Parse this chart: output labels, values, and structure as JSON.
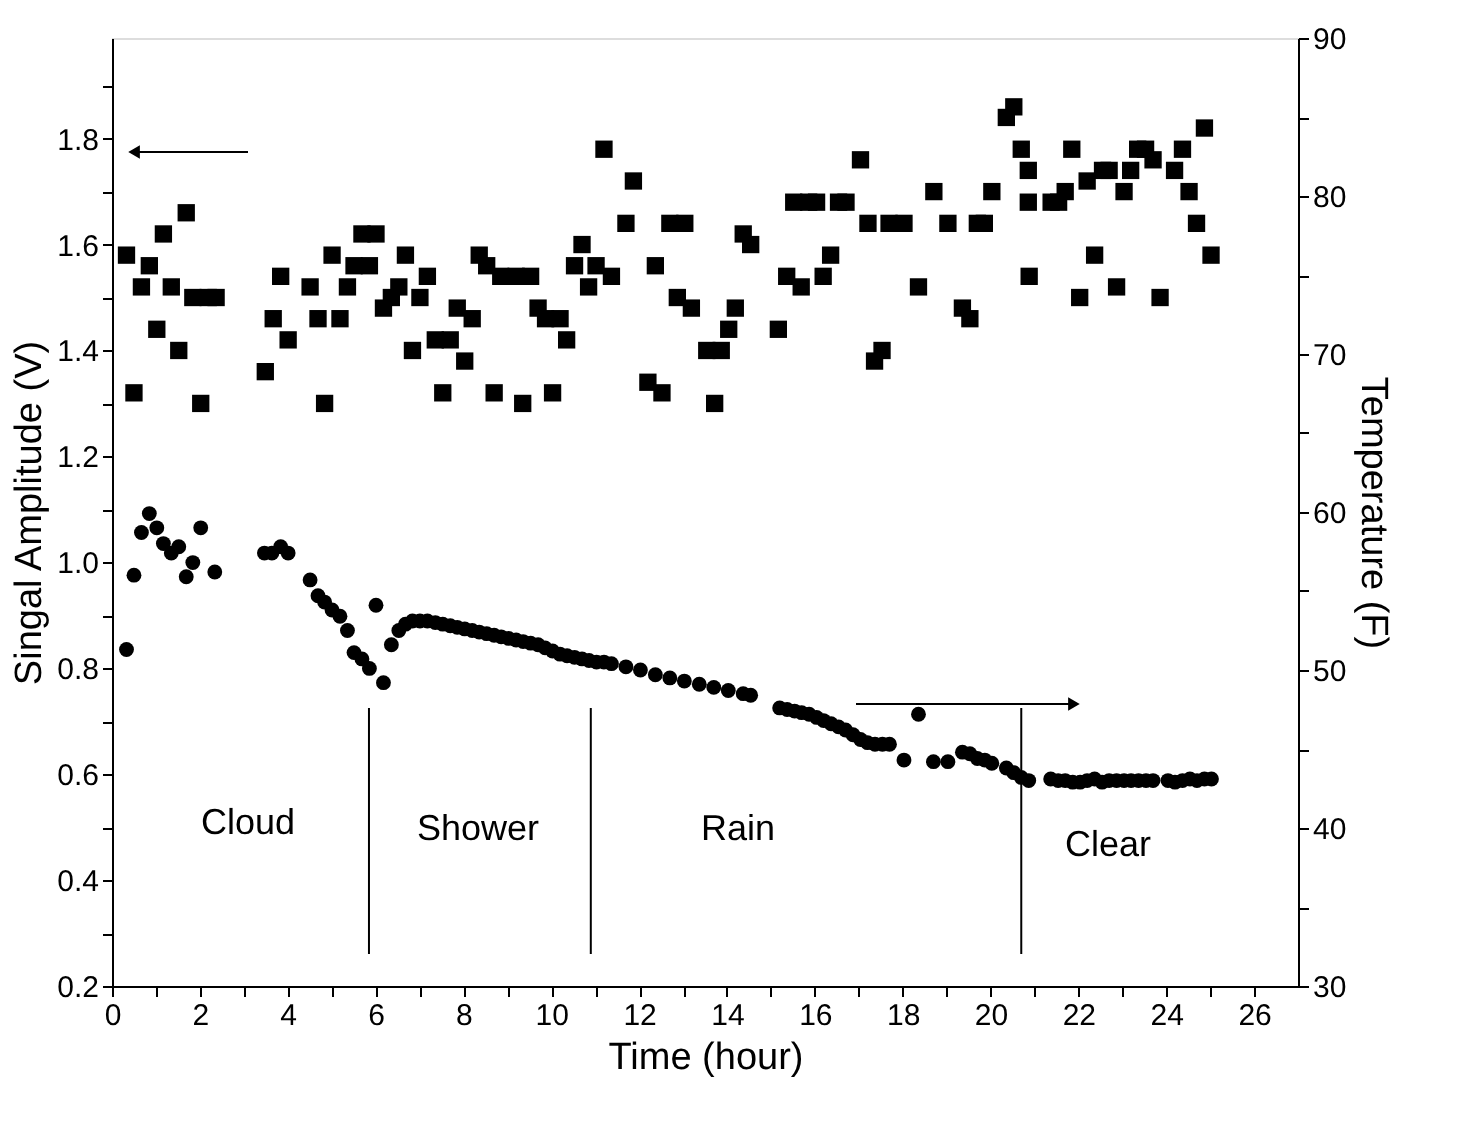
{
  "chart_data": {
    "type": "scatter",
    "xlabel": "Time (hour)",
    "ylabel": "Singal Amplitude (V)",
    "y2label": "Temperature (F)",
    "xlim": [
      0,
      27
    ],
    "xticks": [
      0,
      {
        "value": 1,
        "label": null
      },
      2,
      {
        "value": 3,
        "label": null
      },
      4,
      {
        "value": 5,
        "label": null
      },
      6,
      {
        "value": 7,
        "label": null
      },
      8,
      {
        "value": 9,
        "label": null
      },
      10,
      {
        "value": 11,
        "label": null
      },
      12,
      {
        "value": 13,
        "label": null
      },
      14,
      {
        "value": 15,
        "label": null
      },
      16,
      {
        "value": 17,
        "label": null
      },
      18,
      {
        "value": 19,
        "label": null
      },
      20,
      {
        "value": 21,
        "label": null
      },
      22,
      {
        "value": 23,
        "label": null
      },
      24,
      {
        "value": 25,
        "label": null
      },
      26
    ],
    "ylim": [
      0.2,
      1.99
    ],
    "yticks": [
      0.2,
      {
        "value": 0.3,
        "label": null
      },
      0.4,
      {
        "value": 0.5,
        "label": null
      },
      0.6,
      {
        "value": 0.7,
        "label": null
      },
      0.8,
      {
        "value": 0.9,
        "label": null
      },
      {
        "value": 1.0,
        "label": "1.0"
      },
      {
        "value": 1.1,
        "label": null
      },
      1.2,
      {
        "value": 1.3,
        "label": null
      },
      1.4,
      {
        "value": 1.5,
        "label": null
      },
      1.6,
      {
        "value": 1.7,
        "label": null
      },
      1.8,
      {
        "value": 1.9,
        "label": null
      }
    ],
    "y2lim": [
      30,
      90
    ],
    "y2ticks": [
      30,
      {
        "value": 35,
        "label": null
      },
      40,
      {
        "value": 45,
        "label": null
      },
      50,
      {
        "value": 55,
        "label": null
      },
      60,
      {
        "value": 65,
        "label": null
      },
      70,
      {
        "value": 75,
        "label": null
      },
      80,
      {
        "value": 85,
        "label": null
      },
      90
    ],
    "grid": false,
    "series": [
      {
        "marker": "square",
        "color": "#000000",
        "x": [
          0.33,
          0.5,
          0.67,
          0.85,
          1.02,
          1.17,
          1.35,
          1.52,
          1.69,
          1.84,
          2.02,
          2.19,
          2.37,
          3.49,
          3.67,
          3.84,
          4.01,
          4.51,
          4.69,
          4.84,
          5.01,
          5.19,
          5.36,
          5.51,
          5.69,
          5.86,
          6.01,
          6.18,
          6.36,
          6.53,
          6.68,
          6.84,
          7.01,
          7.18,
          7.36,
          7.53,
          7.7,
          7.86,
          8.03,
          8.2,
          8.36,
          8.53,
          8.7,
          8.85,
          9.2,
          9.35,
          9.53,
          9.7,
          9.87,
          10.03,
          10.2,
          10.35,
          10.53,
          10.7,
          10.85,
          11.02,
          11.2,
          11.37,
          11.7,
          11.87,
          12.2,
          12.37,
          12.52,
          12.7,
          12.87,
          13.04,
          13.19,
          13.54,
          13.72,
          13.87,
          14.04,
          14.19,
          14.37,
          14.54,
          15.17,
          15.36,
          15.52,
          15.69,
          15.86,
          16.04,
          16.19,
          16.36,
          16.54,
          16.71,
          17.04,
          17.21,
          17.36,
          17.53,
          17.69,
          18.03,
          18.36,
          18.71,
          19.03,
          19.36,
          19.53,
          19.7,
          19.86,
          20.03,
          20.36,
          20.53,
          20.7,
          20.86,
          20.86,
          20.88,
          21.38,
          21.55,
          21.7,
          21.85,
          22.03,
          22.2,
          22.37,
          22.55,
          22.7,
          22.87,
          23.04,
          23.19,
          23.35,
          23.53,
          23.7,
          23.86,
          24.19,
          24.37,
          24.52,
          24.69,
          24.87,
          25.02
        ],
        "values": [
          1.58,
          1.32,
          1.52,
          1.56,
          1.44,
          1.62,
          1.52,
          1.4,
          1.66,
          1.5,
          1.3,
          1.5,
          1.5,
          1.36,
          1.46,
          1.54,
          1.42,
          1.52,
          1.46,
          1.3,
          1.58,
          1.46,
          1.52,
          1.56,
          1.62,
          1.56,
          1.62,
          1.48,
          1.5,
          1.52,
          1.58,
          1.4,
          1.5,
          1.54,
          1.42,
          1.32,
          1.42,
          1.48,
          1.38,
          1.46,
          1.58,
          1.56,
          1.32,
          1.54,
          1.54,
          1.3,
          1.54,
          1.48,
          1.46,
          1.32,
          1.46,
          1.42,
          1.56,
          1.6,
          1.52,
          1.56,
          1.78,
          1.54,
          1.64,
          1.72,
          1.34,
          1.56,
          1.32,
          1.64,
          1.5,
          1.64,
          1.48,
          1.4,
          1.3,
          1.4,
          1.44,
          1.48,
          1.62,
          1.6,
          1.44,
          1.54,
          1.68,
          1.52,
          1.68,
          1.68,
          1.54,
          1.58,
          1.68,
          1.68,
          1.76,
          1.64,
          1.38,
          1.4,
          1.64,
          1.64,
          1.52,
          1.7,
          1.64,
          1.48,
          1.46,
          1.64,
          1.64,
          1.7,
          1.84,
          1.86,
          1.78,
          1.74,
          1.68,
          1.54,
          1.68,
          1.68,
          1.7,
          1.78,
          1.5,
          1.72,
          1.58,
          1.74,
          1.74,
          1.52,
          1.7,
          1.74,
          1.78,
          1.78,
          1.76,
          1.5,
          1.74,
          1.78,
          1.7,
          1.64,
          1.82,
          1.58
        ]
      },
      {
        "marker": "circle",
        "color": "#000000",
        "axis": "y2",
        "x": [
          0.33,
          0.5,
          0.67,
          0.85,
          1.02,
          1.17,
          1.35,
          1.52,
          1.69,
          1.84,
          2.02,
          2.34,
          3.47,
          3.64,
          3.84,
          4.01,
          4.51,
          4.69,
          4.84,
          5.01,
          5.19,
          5.36,
          5.51,
          5.69,
          5.86,
          6.01,
          6.18,
          6.36,
          6.53,
          6.68,
          6.84,
          7.01,
          7.18,
          7.36,
          7.53,
          7.7,
          7.86,
          8.03,
          8.2,
          8.36,
          8.53,
          8.7,
          8.86,
          9.03,
          9.2,
          9.36,
          9.53,
          9.7,
          9.86,
          10.03,
          10.2,
          10.36,
          10.53,
          10.7,
          10.86,
          11.03,
          11.2,
          11.37,
          11.7,
          12.03,
          12.37,
          12.7,
          13.03,
          13.37,
          13.7,
          14.03,
          14.37,
          14.54,
          15.2,
          15.37,
          15.54,
          15.7,
          15.87,
          16.04,
          16.2,
          16.37,
          16.54,
          16.7,
          16.87,
          17.04,
          17.2,
          17.37,
          17.54,
          17.7,
          18.03,
          18.36,
          18.7,
          19.03,
          19.36,
          19.53,
          19.7,
          19.87,
          20.03,
          20.36,
          20.53,
          20.7,
          20.87,
          21.37,
          21.54,
          21.7,
          21.87,
          22.04,
          22.2,
          22.37,
          22.54,
          22.7,
          22.87,
          23.04,
          23.2,
          23.37,
          23.54,
          23.7,
          24.04,
          24.2,
          24.37,
          24.54,
          24.7,
          24.87,
          25.03
        ],
        "values": [
          51.3,
          56.0,
          58.7,
          59.9,
          59.0,
          58.0,
          57.4,
          57.8,
          55.9,
          56.8,
          59.0,
          56.2,
          57.4,
          57.4,
          57.8,
          57.4,
          55.7,
          54.7,
          54.3,
          53.8,
          53.4,
          52.5,
          51.1,
          50.7,
          50.1,
          54.1,
          49.2,
          51.6,
          52.5,
          52.9,
          53.1,
          53.1,
          53.1,
          53.0,
          52.9,
          52.8,
          52.7,
          52.6,
          52.5,
          52.4,
          52.3,
          52.2,
          52.1,
          52.0,
          51.9,
          51.8,
          51.7,
          51.6,
          51.4,
          51.2,
          51.0,
          50.9,
          50.8,
          50.7,
          50.6,
          50.5,
          50.5,
          50.4,
          50.2,
          50.0,
          49.7,
          49.5,
          49.3,
          49.1,
          48.9,
          48.7,
          48.5,
          48.4,
          47.6,
          47.5,
          47.4,
          47.3,
          47.2,
          47.0,
          46.8,
          46.6,
          46.4,
          46.2,
          45.9,
          45.6,
          45.4,
          45.3,
          45.3,
          45.3,
          44.3,
          47.2,
          44.2,
          44.2,
          44.8,
          44.7,
          44.4,
          44.3,
          44.1,
          43.8,
          43.5,
          43.2,
          43.0,
          43.1,
          43.0,
          43.0,
          42.9,
          42.9,
          43.0,
          43.1,
          42.9,
          43.0,
          43.0,
          43.0,
          43.0,
          43.0,
          43.0,
          43.0,
          43.0,
          42.9,
          43.0,
          43.1,
          43.0,
          43.1,
          43.1
        ]
      }
    ],
    "ref_lines": [
      {
        "axis": "x",
        "value": 5.85
      },
      {
        "axis": "x",
        "value": 10.9
      },
      {
        "axis": "x",
        "value": 20.7
      }
    ],
    "annotations": [
      "Cloud",
      "Shower",
      "Rain",
      "Clear"
    ]
  }
}
